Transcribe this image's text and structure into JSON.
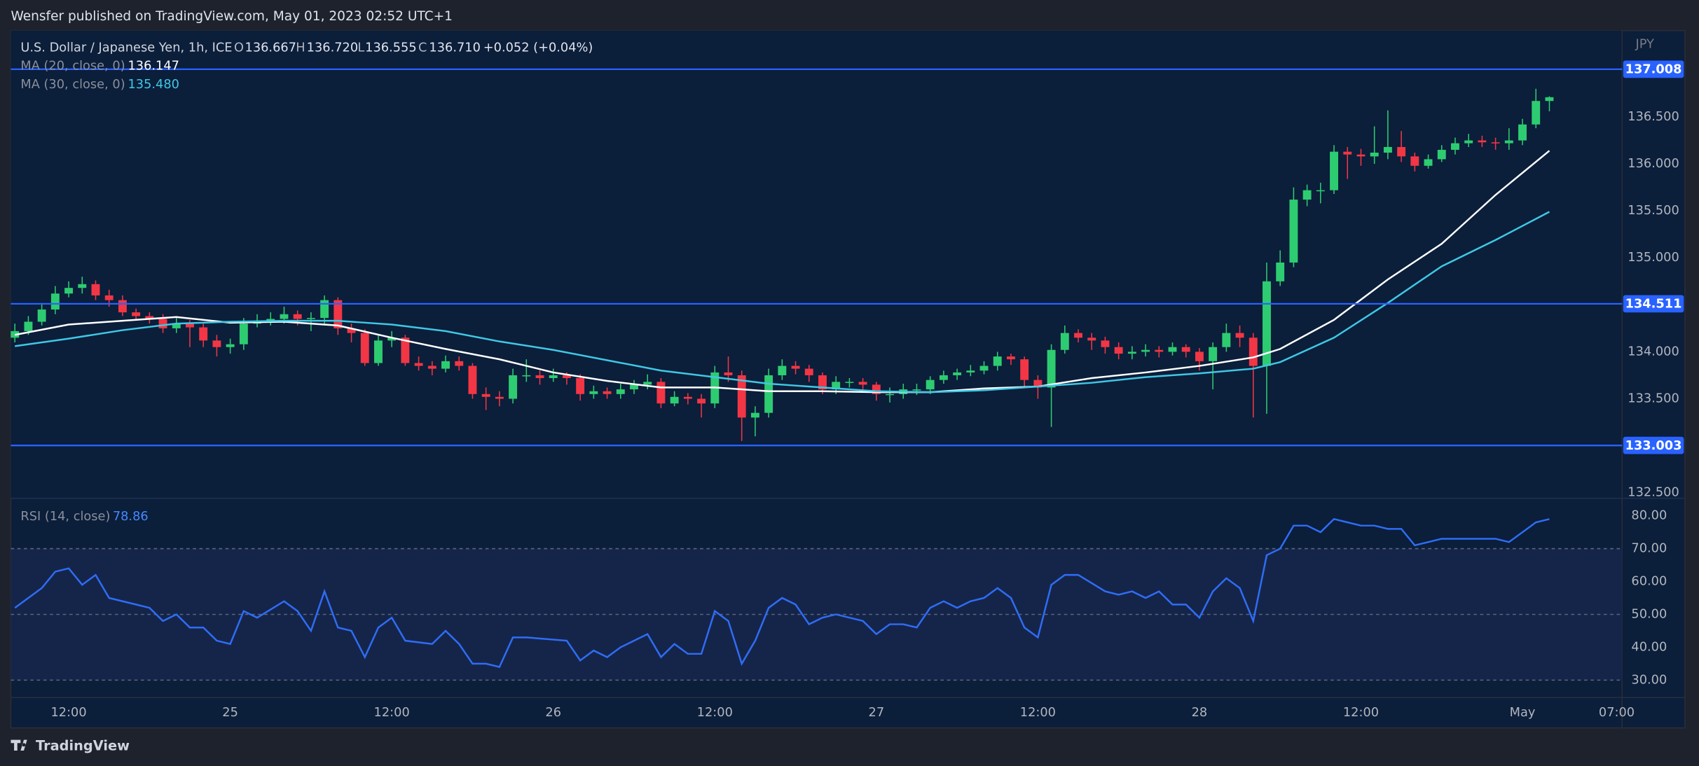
{
  "header": {
    "text": "Wensfer published on TradingView.com, May 01, 2023 02:52 UTC+1"
  },
  "footer": {
    "brand": "TradingView"
  },
  "chart_data": [
    {
      "type": "candlestick",
      "title": "U.S. Dollar / Japanese Yen, 1h, ICE",
      "ohlc_letters": [
        "O",
        "H",
        "L",
        "C"
      ],
      "ohlc_readout": [
        "136.667",
        "136.720",
        "136.555",
        "136.710"
      ],
      "change": "+0.052 (+0.04%)",
      "y_unit": "JPY",
      "up_color": "#2ecc71",
      "down_color": "#f23645",
      "xlim": [
        -0.3,
        119.4
      ],
      "xticks": [
        {
          "value": 4,
          "label": "12:00"
        },
        {
          "value": 16,
          "label": "25"
        },
        {
          "value": 28,
          "label": "12:00"
        },
        {
          "value": 40,
          "label": "26"
        },
        {
          "value": 52,
          "label": "12:00"
        },
        {
          "value": 64,
          "label": "27"
        },
        {
          "value": 76,
          "label": "12:00"
        },
        {
          "value": 88,
          "label": "28"
        },
        {
          "value": 100,
          "label": "12:00"
        },
        {
          "value": 112,
          "label": "May"
        },
        {
          "value": 119,
          "label": "07:00"
        }
      ],
      "ylim": [
        132.44,
        137.42
      ],
      "yticks": [
        {
          "value": 132.5,
          "label": "132.500"
        },
        {
          "value": 133.5,
          "label": "133.500"
        },
        {
          "value": 134,
          "label": "134.000"
        },
        {
          "value": 135,
          "label": "135.000"
        },
        {
          "value": 135.5,
          "label": "135.500"
        },
        {
          "value": 136,
          "label": "136.000"
        },
        {
          "value": 136.5,
          "label": "136.500"
        }
      ],
      "hlines": [
        137.008,
        134.511,
        133.003
      ],
      "hline_color": "#2962ff",
      "open": [
        134.15,
        134.22,
        134.32,
        134.45,
        134.62,
        134.68,
        134.72,
        134.6,
        134.55,
        134.42,
        134.38,
        134.35,
        134.25,
        134.3,
        134.26,
        134.12,
        134.05,
        134.08,
        134.3,
        134.32,
        134.35,
        134.4,
        134.35,
        134.36,
        134.55,
        134.25,
        134.2,
        133.88,
        134.12,
        134.15,
        133.88,
        133.85,
        133.82,
        133.9,
        133.85,
        133.55,
        133.52,
        133.5,
        133.75,
        133.75,
        133.72,
        133.75,
        133.72,
        133.55,
        133.58,
        133.55,
        133.6,
        133.65,
        133.68,
        133.45,
        133.52,
        133.5,
        133.45,
        133.78,
        133.75,
        133.3,
        133.35,
        133.75,
        133.85,
        133.82,
        133.75,
        133.6,
        133.68,
        133.68,
        133.65,
        133.55,
        133.55,
        133.6,
        133.6,
        133.7,
        133.75,
        133.78,
        133.8,
        133.85,
        133.95,
        133.92,
        133.7,
        133.62,
        134.02,
        134.2,
        134.15,
        134.12,
        134.05,
        133.98,
        134.0,
        134.02,
        134.0,
        134.05,
        134.0,
        133.9,
        134.05,
        134.2,
        134.15,
        133.85,
        134.75,
        134.95,
        135.62,
        135.72,
        135.72,
        136.13,
        136.1,
        136.08,
        136.12,
        136.18,
        136.08,
        135.98,
        136.05,
        136.15,
        136.22,
        136.25,
        136.23,
        136.22,
        136.25,
        136.42,
        136.67
      ],
      "high": [
        134.3,
        134.38,
        134.52,
        134.7,
        134.75,
        134.8,
        134.76,
        134.66,
        134.6,
        134.46,
        134.42,
        134.4,
        134.36,
        134.34,
        134.3,
        134.18,
        134.14,
        134.36,
        134.4,
        134.42,
        134.48,
        134.44,
        134.42,
        134.6,
        134.58,
        134.3,
        134.24,
        134.18,
        134.22,
        134.18,
        133.95,
        133.9,
        133.96,
        133.95,
        133.88,
        133.62,
        133.58,
        133.82,
        133.92,
        133.8,
        133.82,
        133.78,
        133.76,
        133.64,
        133.62,
        133.66,
        133.7,
        133.76,
        133.72,
        133.58,
        133.56,
        133.55,
        133.85,
        133.95,
        133.8,
        133.42,
        133.82,
        133.92,
        133.9,
        133.86,
        133.78,
        133.74,
        133.72,
        133.72,
        133.68,
        133.62,
        133.66,
        133.66,
        133.74,
        133.8,
        133.82,
        133.86,
        133.9,
        134.0,
        133.98,
        133.95,
        133.75,
        134.08,
        134.28,
        134.24,
        134.2,
        134.16,
        134.1,
        134.06,
        134.08,
        134.06,
        134.1,
        134.08,
        134.04,
        134.1,
        134.3,
        134.28,
        134.2,
        134.95,
        135.08,
        135.75,
        135.78,
        135.8,
        136.2,
        136.18,
        136.16,
        136.4,
        136.57,
        136.35,
        136.12,
        136.1,
        136.2,
        136.28,
        136.32,
        136.3,
        136.28,
        136.38,
        136.48,
        136.8,
        136.72
      ],
      "low": [
        134.1,
        134.18,
        134.28,
        134.4,
        134.58,
        134.62,
        134.55,
        134.48,
        134.38,
        134.33,
        134.3,
        134.2,
        134.2,
        134.05,
        134.05,
        133.95,
        133.98,
        134.02,
        134.26,
        134.28,
        134.3,
        134.28,
        134.22,
        134.3,
        134.18,
        134.1,
        133.85,
        133.85,
        134.05,
        133.85,
        133.8,
        133.75,
        133.78,
        133.8,
        133.5,
        133.38,
        133.42,
        133.45,
        133.68,
        133.65,
        133.68,
        133.65,
        133.48,
        133.5,
        133.5,
        133.5,
        133.55,
        133.6,
        133.4,
        133.42,
        133.44,
        133.3,
        133.4,
        133.68,
        133.05,
        133.1,
        133.3,
        133.7,
        133.76,
        133.68,
        133.55,
        133.55,
        133.62,
        133.6,
        133.48,
        133.46,
        133.5,
        133.54,
        133.55,
        133.66,
        133.7,
        133.74,
        133.76,
        133.8,
        133.86,
        133.62,
        133.5,
        133.2,
        133.98,
        134.1,
        134.02,
        133.98,
        133.92,
        133.92,
        133.95,
        133.94,
        133.96,
        133.94,
        133.8,
        133.6,
        134.0,
        134.05,
        133.3,
        133.34,
        134.7,
        134.9,
        135.55,
        135.58,
        135.68,
        135.84,
        135.98,
        136.0,
        136.05,
        136.02,
        135.92,
        135.95,
        136.02,
        136.1,
        136.18,
        136.18,
        136.15,
        136.15,
        136.2,
        136.38,
        136.56
      ],
      "close": [
        134.22,
        134.32,
        134.45,
        134.62,
        134.68,
        134.72,
        134.6,
        134.55,
        134.42,
        134.38,
        134.35,
        134.25,
        134.3,
        134.26,
        134.12,
        134.05,
        134.08,
        134.3,
        134.32,
        134.35,
        134.4,
        134.35,
        134.36,
        134.55,
        134.25,
        134.2,
        133.88,
        134.12,
        134.15,
        133.88,
        133.85,
        133.82,
        133.9,
        133.85,
        133.55,
        133.52,
        133.5,
        133.75,
        133.75,
        133.72,
        133.75,
        133.72,
        133.55,
        133.58,
        133.55,
        133.6,
        133.65,
        133.68,
        133.45,
        133.52,
        133.5,
        133.45,
        133.78,
        133.75,
        133.3,
        133.35,
        133.75,
        133.85,
        133.82,
        133.75,
        133.6,
        133.68,
        133.68,
        133.65,
        133.55,
        133.55,
        133.6,
        133.6,
        133.7,
        133.75,
        133.78,
        133.8,
        133.85,
        133.95,
        133.92,
        133.7,
        133.62,
        134.02,
        134.2,
        134.15,
        134.12,
        134.05,
        133.98,
        134.0,
        134.02,
        134.0,
        134.05,
        134.0,
        133.9,
        134.05,
        134.2,
        134.15,
        133.85,
        134.75,
        134.95,
        135.62,
        135.72,
        135.72,
        136.13,
        136.1,
        136.08,
        136.12,
        136.18,
        136.08,
        135.98,
        136.05,
        136.15,
        136.22,
        136.25,
        136.23,
        136.22,
        136.25,
        136.42,
        136.67,
        136.71
      ],
      "series": [
        {
          "name": "MA (20, close, 0)",
          "last_label": "136.147",
          "color": "#ffffff",
          "x": [
            0,
            4,
            8,
            12,
            16,
            20,
            24,
            28,
            32,
            36,
            40,
            44,
            48,
            52,
            56,
            60,
            64,
            68,
            72,
            76,
            80,
            84,
            88,
            92,
            94,
            98,
            102,
            106,
            110,
            114
          ],
          "values": [
            134.18,
            134.29,
            134.33,
            134.37,
            134.31,
            134.32,
            134.28,
            134.15,
            134.03,
            133.92,
            133.78,
            133.69,
            133.62,
            133.62,
            133.58,
            133.58,
            133.57,
            133.57,
            133.61,
            133.63,
            133.72,
            133.78,
            133.85,
            133.94,
            134.03,
            134.34,
            134.77,
            135.15,
            135.67,
            136.14
          ]
        },
        {
          "name": "MA (30, close, 0)",
          "last_label": "135.480",
          "color": "#3fc8e4",
          "x": [
            0,
            4,
            8,
            12,
            16,
            20,
            24,
            28,
            32,
            36,
            40,
            44,
            48,
            52,
            56,
            60,
            64,
            68,
            72,
            76,
            80,
            84,
            88,
            92,
            94,
            98,
            102,
            106,
            110,
            114
          ],
          "values": [
            134.06,
            134.14,
            134.23,
            134.3,
            134.32,
            134.33,
            134.33,
            134.29,
            134.22,
            134.11,
            134.02,
            133.91,
            133.8,
            133.73,
            133.66,
            133.62,
            133.58,
            133.57,
            133.59,
            133.63,
            133.67,
            133.73,
            133.77,
            133.82,
            133.89,
            134.15,
            134.52,
            134.91,
            135.19,
            135.49
          ]
        }
      ]
    },
    {
      "type": "line",
      "xlim": [
        -0.3,
        119.4
      ],
      "ylim": [
        24.7,
        85.3
      ],
      "yticks": [
        {
          "value": 30,
          "label": "30.00"
        },
        {
          "value": 40,
          "label": "40.00"
        },
        {
          "value": 50,
          "label": "50.00"
        },
        {
          "value": 60,
          "label": "60.00"
        },
        {
          "value": 70,
          "label": "70.00"
        },
        {
          "value": 80,
          "label": "80.00"
        }
      ],
      "levels": [
        70,
        50,
        30
      ],
      "band": [
        30,
        70
      ],
      "series": [
        {
          "name": "RSI (14, close)",
          "last_label": "78.86",
          "color": "#2f6df6",
          "x": [
            0,
            1,
            2,
            3,
            4,
            5,
            6,
            7,
            9,
            10,
            11,
            12,
            13,
            14,
            15,
            16,
            17,
            18,
            20,
            21,
            22,
            23,
            24,
            25,
            26,
            27,
            28,
            29,
            31,
            32,
            33,
            34,
            35,
            36,
            37,
            38,
            41,
            42,
            43,
            44,
            45,
            47,
            48,
            49,
            50,
            51,
            52,
            53,
            54,
            55,
            56,
            57,
            58,
            59,
            60,
            61,
            63,
            64,
            65,
            66,
            67,
            68,
            69,
            70,
            71,
            72,
            73,
            74,
            75,
            76,
            77,
            78,
            79,
            81,
            82,
            83,
            84,
            85,
            86,
            87,
            88,
            89,
            90,
            91,
            92,
            93,
            94,
            95,
            96,
            97,
            98,
            99,
            100,
            101,
            102,
            103,
            104,
            105,
            106,
            107,
            110,
            111,
            112,
            113,
            114
          ],
          "values": [
            52,
            55,
            58,
            63,
            64,
            59,
            62,
            55,
            53,
            52,
            48,
            50,
            46,
            46,
            42,
            41,
            51,
            49,
            54,
            51,
            45,
            57,
            46,
            45,
            37,
            46,
            49,
            42,
            41,
            45,
            41,
            35,
            35,
            34,
            43,
            43,
            42,
            36,
            39,
            37,
            40,
            44,
            37,
            41,
            38,
            38,
            51,
            48,
            35,
            42,
            52,
            55,
            53,
            47,
            49,
            50,
            48,
            44,
            47,
            47,
            46,
            52,
            54,
            52,
            54,
            55,
            58,
            55,
            46,
            43,
            59,
            62,
            62,
            57,
            56,
            57,
            55,
            57,
            53,
            53,
            49,
            57,
            61,
            58,
            48,
            68,
            70,
            77,
            77,
            75,
            79,
            78,
            77,
            77,
            76,
            76,
            71,
            72,
            73,
            73,
            73,
            72,
            75,
            78,
            79
          ]
        }
      ]
    }
  ]
}
